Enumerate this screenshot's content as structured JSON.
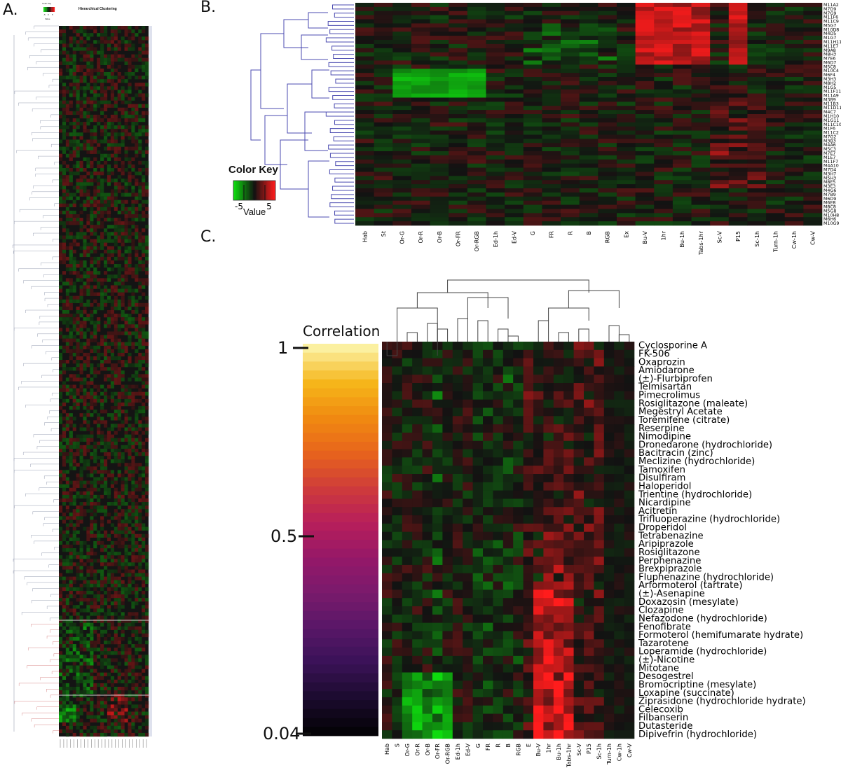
{
  "panels": {
    "a": "A.",
    "b": "B.",
    "c": "C."
  },
  "panel_a": {
    "title": "Hierarchical Clustering",
    "color_key_label": "Color Key",
    "value_label": "Value",
    "key_ticks": [
      "-5",
      "0",
      "5"
    ]
  },
  "chart_data": [
    {
      "type": "heatmap",
      "panel": "A",
      "title": "Hierarchical Clustering",
      "color_scale": {
        "low": "#19c219",
        "mid": "#111111",
        "high": "#ff1c1c"
      },
      "dendrogram_colors": {
        "upper": "#9aa0b4",
        "lower": "#d88a8a"
      }
    },
    {
      "type": "heatmap",
      "panel": "B",
      "color_key": {
        "title": "Color Key",
        "xlabel": "Value",
        "ticks": [
          -5,
          5
        ],
        "range": [
          -7,
          7
        ]
      },
      "columns": [
        "Hab",
        "St",
        "Or-G",
        "Or-R",
        "Or-B",
        "Or-FR",
        "Or-RGB",
        "Ed-1h",
        "Ed-V",
        "G",
        "FR",
        "R",
        "B",
        "RGB",
        "Ex",
        "Bu-V",
        "1hr",
        "Bu-1h",
        "Tabs-1hr",
        "Sc-V",
        "P15",
        "Sc-1h",
        "Turn-1h",
        "Cw-1h",
        "Cw-V"
      ],
      "rows": [
        "M11A2",
        "M7D9",
        "M7G9",
        "M11F6",
        "M11C9",
        "M5G7",
        "M10D8",
        "M4D5",
        "M1G7",
        "M11H11",
        "M11E7",
        "M9A8",
        "M8H3",
        "M7E6",
        "M6D7",
        "M5C8",
        "M10C4",
        "M6F4",
        "M3H3",
        "M8H2",
        "M1G5",
        "M11F11",
        "M11A9",
        "M3B9",
        "M11B3",
        "M11D11",
        "M4C7",
        "M1H10",
        "M1G11",
        "M11C10",
        "M1F6",
        "M11C2",
        "M7G2",
        "M3B3",
        "M4A6",
        "M5C3",
        "M7E7",
        "M1E7",
        "M11F7",
        "M4A10",
        "M7D4",
        "M3H7",
        "M5H3",
        "M8E5",
        "M3E3",
        "M4G6",
        "M7B9",
        "M6D9",
        "M6E8",
        "M8C8",
        "M5G8",
        "M10H8",
        "M6H6",
        "M10G9"
      ],
      "col_groups": {
        "green_block": [
          "Or-G",
          "Or-R",
          "Or-B",
          "Or-FR",
          "Or-RGB"
        ],
        "red_block": [
          "Bu-V",
          "1hr",
          "Bu-1h",
          "Tabs-1hr",
          "P15"
        ]
      },
      "dendrogram_color": "#4b4bb0"
    },
    {
      "type": "heatmap",
      "panel": "C",
      "color_key": {
        "title": "Correlation",
        "ticks": [
          1,
          0.5,
          0.04
        ]
      },
      "columns": [
        "Hab",
        "S",
        "Or-G",
        "Or-R",
        "Or-B",
        "Or-FR",
        "Or-RGB",
        "Ed-1h",
        "Ed-V",
        "G",
        "FR",
        "R",
        "B",
        "RGB",
        "E",
        "Bu-V",
        "1hr",
        "Bu-1h",
        "Tabs-1hr",
        "Sc-V",
        "P15",
        "Sc-1h",
        "Turn-1h",
        "Cw-1h",
        "Cw-V"
      ],
      "rows": [
        "Cyclosporine A",
        "FK-506",
        "Oxaprozin",
        "Amiodarone",
        "(±)-Flurbiprofen",
        "Telmisartan",
        "Pimecrolimus",
        "Rosiglitazone (maleate)",
        "Megestryl Acetate",
        "Toremifene (citrate)",
        "Reserpine",
        "Nimodipine",
        "Dronedarone (hydrochloride)",
        "Bacitracin (zinc)",
        "Meclizine (hydrochloride)",
        "Tamoxifen",
        "Disulfiram",
        "Haloperidol",
        "Trientine (hydrochloride)",
        "Nicardipine",
        "Acitretin",
        "Trifluoperazine (hydrochloride)",
        "Droperidol",
        "Tetrabenazine",
        "Aripiprazole",
        "Rosiglitazone",
        "Perphenazine",
        "Brexpiprazole",
        "Fluphenazine (hydrochloride)",
        "Arformoterol (tartrate)",
        "(±)-Asenapine",
        "Doxazosin (mesylate)",
        "Clozapine",
        "Nefazodone (hydrochloride)",
        "Fenofibrate",
        "Formoterol (hemifumarate hydrate)",
        "Tazarotene",
        "Loperamide (hydrochloride)",
        "(±)-Nicotine",
        "Mitotane",
        "Desogestrel",
        "Bromocriptine (mesylate)",
        "Loxapine (succinate)",
        "Ziprasidone (hydrochloride hydrate)",
        "Celecoxib",
        "Filbanserin",
        "Dutasteride",
        "Dipivefrin (hydrochloride)"
      ],
      "correlation_gradient": [
        "#fbf0a0",
        "#f6b61a",
        "#f08a10",
        "#e8641c",
        "#cf3c3a",
        "#b81f5a",
        "#961868",
        "#7a1a6c",
        "#5a1768",
        "#3b1258",
        "#1c0b30",
        "#050308"
      ]
    }
  ]
}
